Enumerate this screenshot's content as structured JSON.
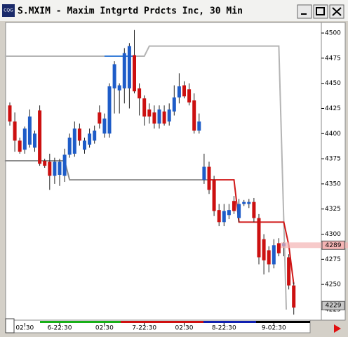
{
  "window_title": "S.MXIM - Maxim Intgrtd Prdcts Inc, 30 Min",
  "icon_label": "CQG",
  "chart_data": {
    "type": "candlestick",
    "categories": [
      null,
      null,
      null,
      "02:30",
      null,
      null,
      null,
      null,
      null,
      null,
      "6-22:30",
      null,
      null,
      null,
      null,
      null,
      null,
      null,
      null,
      "02:30",
      null,
      null,
      null,
      null,
      null,
      null,
      null,
      "7-22:30",
      null,
      null,
      null,
      null,
      null,
      null,
      null,
      "02:30",
      null,
      null,
      null,
      null,
      null,
      null,
      null,
      "8-22:30",
      null,
      null,
      null,
      null,
      null,
      null,
      null,
      null,
      null,
      "9-02:30",
      null,
      null,
      null,
      null
    ],
    "open": [
      4428,
      4412,
      4393,
      4384,
      4389,
      4386,
      4423,
      4373,
      4372,
      4358,
      4359,
      4358,
      4379,
      4380,
      4405,
      4384,
      4389,
      4393,
      4421,
      4400,
      4400,
      4445,
      4443,
      4445,
      4445,
      4478,
      4445,
      4435,
      4424,
      4421,
      4410,
      4422,
      4412,
      4422,
      4436,
      4448,
      4444,
      4433,
      4403,
      4354,
      4367,
      4354,
      4324,
      4312,
      4319,
      4333,
      4316,
      4330,
      4330,
      4332,
      4316,
      4295,
      4284,
      4270,
      4291,
      4288,
      4277,
      4249
    ],
    "high": [
      4431,
      4421,
      4396,
      4407,
      4424,
      4403,
      4428,
      4375,
      4380,
      4376,
      4375,
      4385,
      4400,
      4412,
      4410,
      4396,
      4405,
      4408,
      4428,
      4420,
      4450,
      4472,
      4450,
      4485,
      4490,
      4503,
      4450,
      4438,
      4430,
      4428,
      4428,
      4428,
      4430,
      4448,
      4460,
      4452,
      4450,
      4440,
      4420,
      4380,
      4372,
      4358,
      4330,
      4330,
      4330,
      4338,
      4335,
      4334,
      4335,
      4336,
      4320,
      4300,
      4288,
      4295,
      4296,
      4292,
      4280,
      4252
    ],
    "low": [
      4408,
      4382,
      4380,
      4380,
      4386,
      4382,
      4368,
      4366,
      4344,
      4350,
      4348,
      4352,
      4376,
      4377,
      4388,
      4380,
      4386,
      4390,
      4405,
      4396,
      4396,
      4420,
      4420,
      4430,
      4425,
      4440,
      4418,
      4408,
      4410,
      4405,
      4405,
      4408,
      4408,
      4418,
      4430,
      4435,
      4428,
      4400,
      4400,
      4350,
      4340,
      4318,
      4308,
      4308,
      4315,
      4320,
      4312,
      4328,
      4326,
      4312,
      4270,
      4260,
      4262,
      4266,
      4278,
      4278,
      4245,
      4220
    ],
    "close": [
      4412,
      4393,
      4382,
      4405,
      4417,
      4400,
      4370,
      4368,
      4358,
      4372,
      4372,
      4379,
      4396,
      4405,
      4393,
      4393,
      4400,
      4403,
      4410,
      4415,
      4447,
      4469,
      4448,
      4480,
      4487,
      4442,
      4435,
      4417,
      4417,
      4410,
      4424,
      4410,
      4424,
      4436,
      4447,
      4437,
      4431,
      4403,
      4412,
      4367,
      4344,
      4323,
      4312,
      4323,
      4324,
      4323,
      4330,
      4332,
      4332,
      4316,
      4277,
      4274,
      4270,
      4289,
      4281,
      4291,
      4249,
      4227
    ],
    "up_color": "#1e5cc8",
    "down_color": "#cc1010",
    "lines": [
      {
        "color": "#b4b4b4",
        "x": [
          -1,
          27,
          28,
          54,
          55.5
        ],
        "values": [
          4477,
          4477,
          4487,
          4487,
          4225
        ]
      },
      {
        "color": "#3a7fd8",
        "x": [
          19,
          25
        ],
        "values": [
          4477,
          4477
        ]
      },
      {
        "color": "#8c8c8c",
        "x": [
          -1,
          11,
          12,
          40
        ],
        "values": [
          4373,
          4373,
          4354,
          4354
        ]
      },
      {
        "color": "#d01818",
        "x": [
          40,
          45,
          46,
          55,
          56,
          57
        ],
        "values": [
          4354,
          4354,
          4312,
          4312,
          4289,
          4250
        ]
      }
    ],
    "ylim": [
      4214.5,
      4510.5
    ],
    "yticks": [
      4225,
      4250,
      4275,
      4300,
      4325,
      4350,
      4375,
      4400,
      4425,
      4450,
      4475,
      4500
    ],
    "price_tags": [
      {
        "value": 4289,
        "color": "#f4b4b4"
      },
      {
        "value": 4229,
        "color": "#c8c8c8"
      }
    ]
  }
}
